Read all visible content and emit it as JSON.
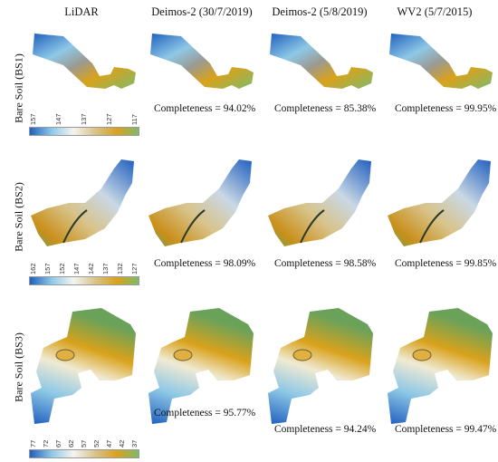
{
  "columns": [
    "LiDAR",
    "Deimos-2 (30/7/2019)",
    "Deimos-2 (5/8/2019)",
    "WV2 (5/7/2015)"
  ],
  "rows": [
    {
      "label": "Bare Soil (BS1)",
      "completeness": [
        "Completeness = 94.02%",
        "Completeness = 85.38%",
        "Completeness = 99.95%"
      ],
      "ticks": [
        "157",
        "147",
        "137",
        "127",
        "117"
      ]
    },
    {
      "label": "Bare Soil (BS2)",
      "completeness": [
        "Completeness = 98.09%",
        "Completeness = 98.58%",
        "Completeness = 99.85%"
      ],
      "ticks": [
        "162",
        "157",
        "152",
        "147",
        "142",
        "137",
        "132",
        "127"
      ]
    },
    {
      "label": "Bare Soil (BS3)",
      "completeness": [
        "Completeness = 95.77%",
        "Completeness = 94.24%",
        "Completeness = 99.47%"
      ],
      "ticks": [
        "77",
        "72",
        "67",
        "62",
        "57",
        "52",
        "47",
        "42",
        "37"
      ]
    }
  ],
  "colors": {
    "blue": "#1f5fbf",
    "lightblue": "#8ec8e6",
    "white": "#f4f4f0",
    "tan": "#d8c38a",
    "orange": "#d9a21c",
    "green": "#7fba6a",
    "grey": "#9a9a92"
  }
}
